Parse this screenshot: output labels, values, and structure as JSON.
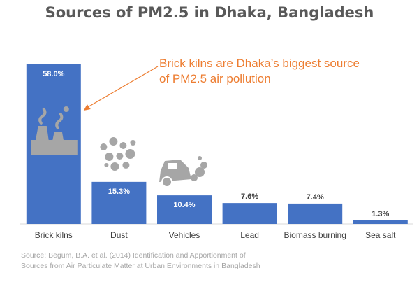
{
  "chart_data": {
    "type": "bar",
    "title": "Sources of PM2.5 in Dhaka, Bangladesh",
    "categories": [
      "Brick kilns",
      "Dust",
      "Vehicles",
      "Lead",
      "Biomass burning",
      "Sea salt"
    ],
    "values": [
      58.0,
      15.3,
      10.4,
      7.6,
      7.4,
      1.3
    ],
    "value_labels": [
      "58.0%",
      "15.3%",
      "10.4%",
      "7.6%",
      "7.4%",
      "1.3%"
    ],
    "xlabel": "",
    "ylabel": "",
    "ylim": [
      0,
      58.0
    ],
    "grid": false,
    "legend": "none",
    "bar_color": "#4472c4",
    "annotations": [
      {
        "text": "Brick kilns are Dhaka’s biggest source of PM2.5 air pollution",
        "color": "#ed7d31",
        "target": "Brick kilns"
      }
    ],
    "icons": [
      "factory-icon",
      "dust-icon",
      "vehicle-exhaust-icon"
    ],
    "source": "Source: Begum, B.A. et al. (2014) Identification and Apportionment of Sources from Air Particulate Matter at Urban Environments in Bangladesh"
  }
}
